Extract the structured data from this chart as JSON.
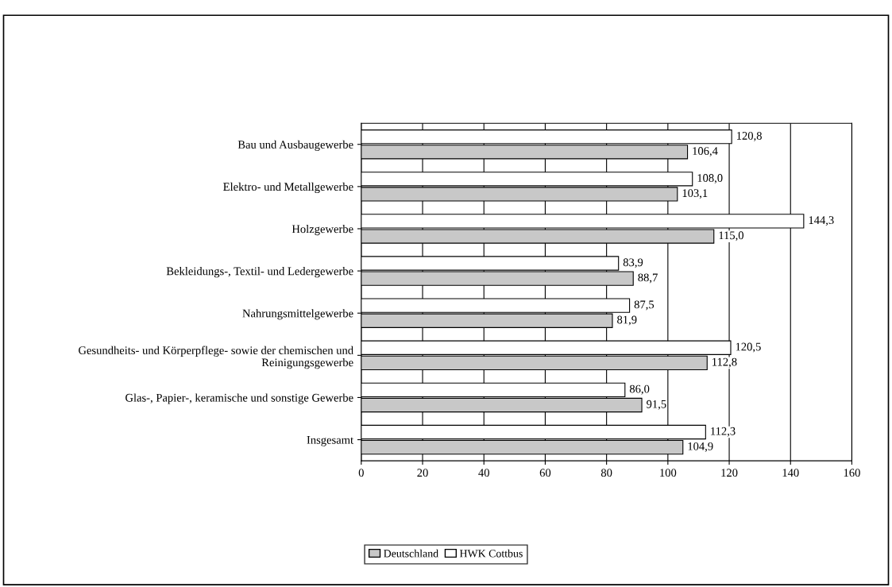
{
  "chart_data": {
    "type": "bar",
    "orientation": "horizontal",
    "categories": [
      "Bau und Ausbaugewerbe",
      "Elektro- und Metallgewerbe",
      "Holzgewerbe",
      "Bekleidungs-, Textil- und Ledergewerbe",
      "Nahrungsmittelgewerbe",
      "Gesundheits- und Körperpflege- sowie der chemischen und Reinigungsgewerbe",
      "Glas-, Papier-, keramische und sonstige Gewerbe",
      "Insgesamt"
    ],
    "series": [
      {
        "name": "Deutschland",
        "color": "#c8c8c8",
        "values": [
          106.4,
          103.1,
          115.0,
          88.7,
          81.9,
          112.8,
          91.5,
          104.9
        ],
        "value_labels": [
          "106,4",
          "103,1",
          "115,0",
          "88,7",
          "81,9",
          "112,8",
          "91,5",
          "104,9"
        ]
      },
      {
        "name": "HWK Cottbus",
        "color": "#ffffff",
        "values": [
          120.8,
          108.0,
          144.3,
          83.9,
          87.5,
          120.5,
          86.0,
          112.3
        ],
        "value_labels": [
          "120,8",
          "108,0",
          "144,3",
          "83,9",
          "87,5",
          "120,5",
          "86,0",
          "112,3"
        ]
      }
    ],
    "xlim": [
      0,
      160
    ],
    "xticks": [
      0,
      20,
      40,
      60,
      80,
      100,
      120,
      140,
      160
    ],
    "grid": "x",
    "legend": "bottom"
  }
}
